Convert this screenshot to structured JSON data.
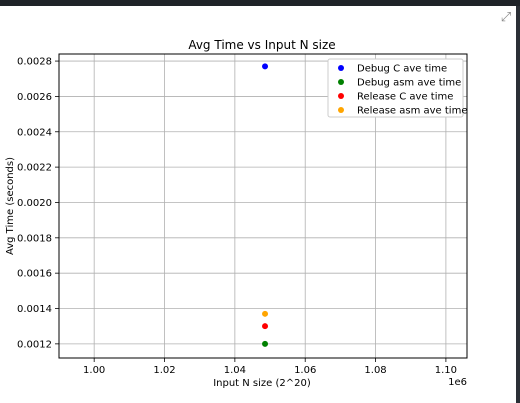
{
  "toolbar": {
    "expand_icon": "expand-icon"
  },
  "chart_data": {
    "type": "scatter",
    "title": "Avg Time vs Input N size",
    "xlabel": "Input N size (2^20)",
    "ylabel": "Avg Time (seconds)",
    "x_offset_label": "1e6",
    "xlim": [
      990000,
      1106000
    ],
    "ylim": [
      0.00112,
      0.00284
    ],
    "x_ticks": [
      1000000,
      1020000,
      1040000,
      1060000,
      1080000,
      1100000
    ],
    "x_tick_labels": [
      "1.00",
      "1.02",
      "1.04",
      "1.06",
      "1.08",
      "1.10"
    ],
    "y_ticks": [
      0.0012,
      0.0014,
      0.0016,
      0.0018,
      0.002,
      0.0022,
      0.0024,
      0.0026,
      0.0028
    ],
    "y_tick_labels": [
      "0.0012",
      "0.0014",
      "0.0016",
      "0.0018",
      "0.0020",
      "0.0022",
      "0.0024",
      "0.0026",
      "0.0028"
    ],
    "grid": true,
    "legend_position": "top-right",
    "series": [
      {
        "name": "Debug C ave time",
        "color": "#0000ff",
        "points": [
          [
            1048576,
            0.00277
          ]
        ]
      },
      {
        "name": "Debug asm ave time",
        "color": "#008000",
        "points": [
          [
            1048576,
            0.0012
          ]
        ]
      },
      {
        "name": "Release C ave time",
        "color": "#ff0000",
        "points": [
          [
            1048576,
            0.0013
          ]
        ]
      },
      {
        "name": "Release asm ave time",
        "color": "#ffa500",
        "points": [
          [
            1048576,
            0.00137
          ]
        ]
      }
    ]
  }
}
